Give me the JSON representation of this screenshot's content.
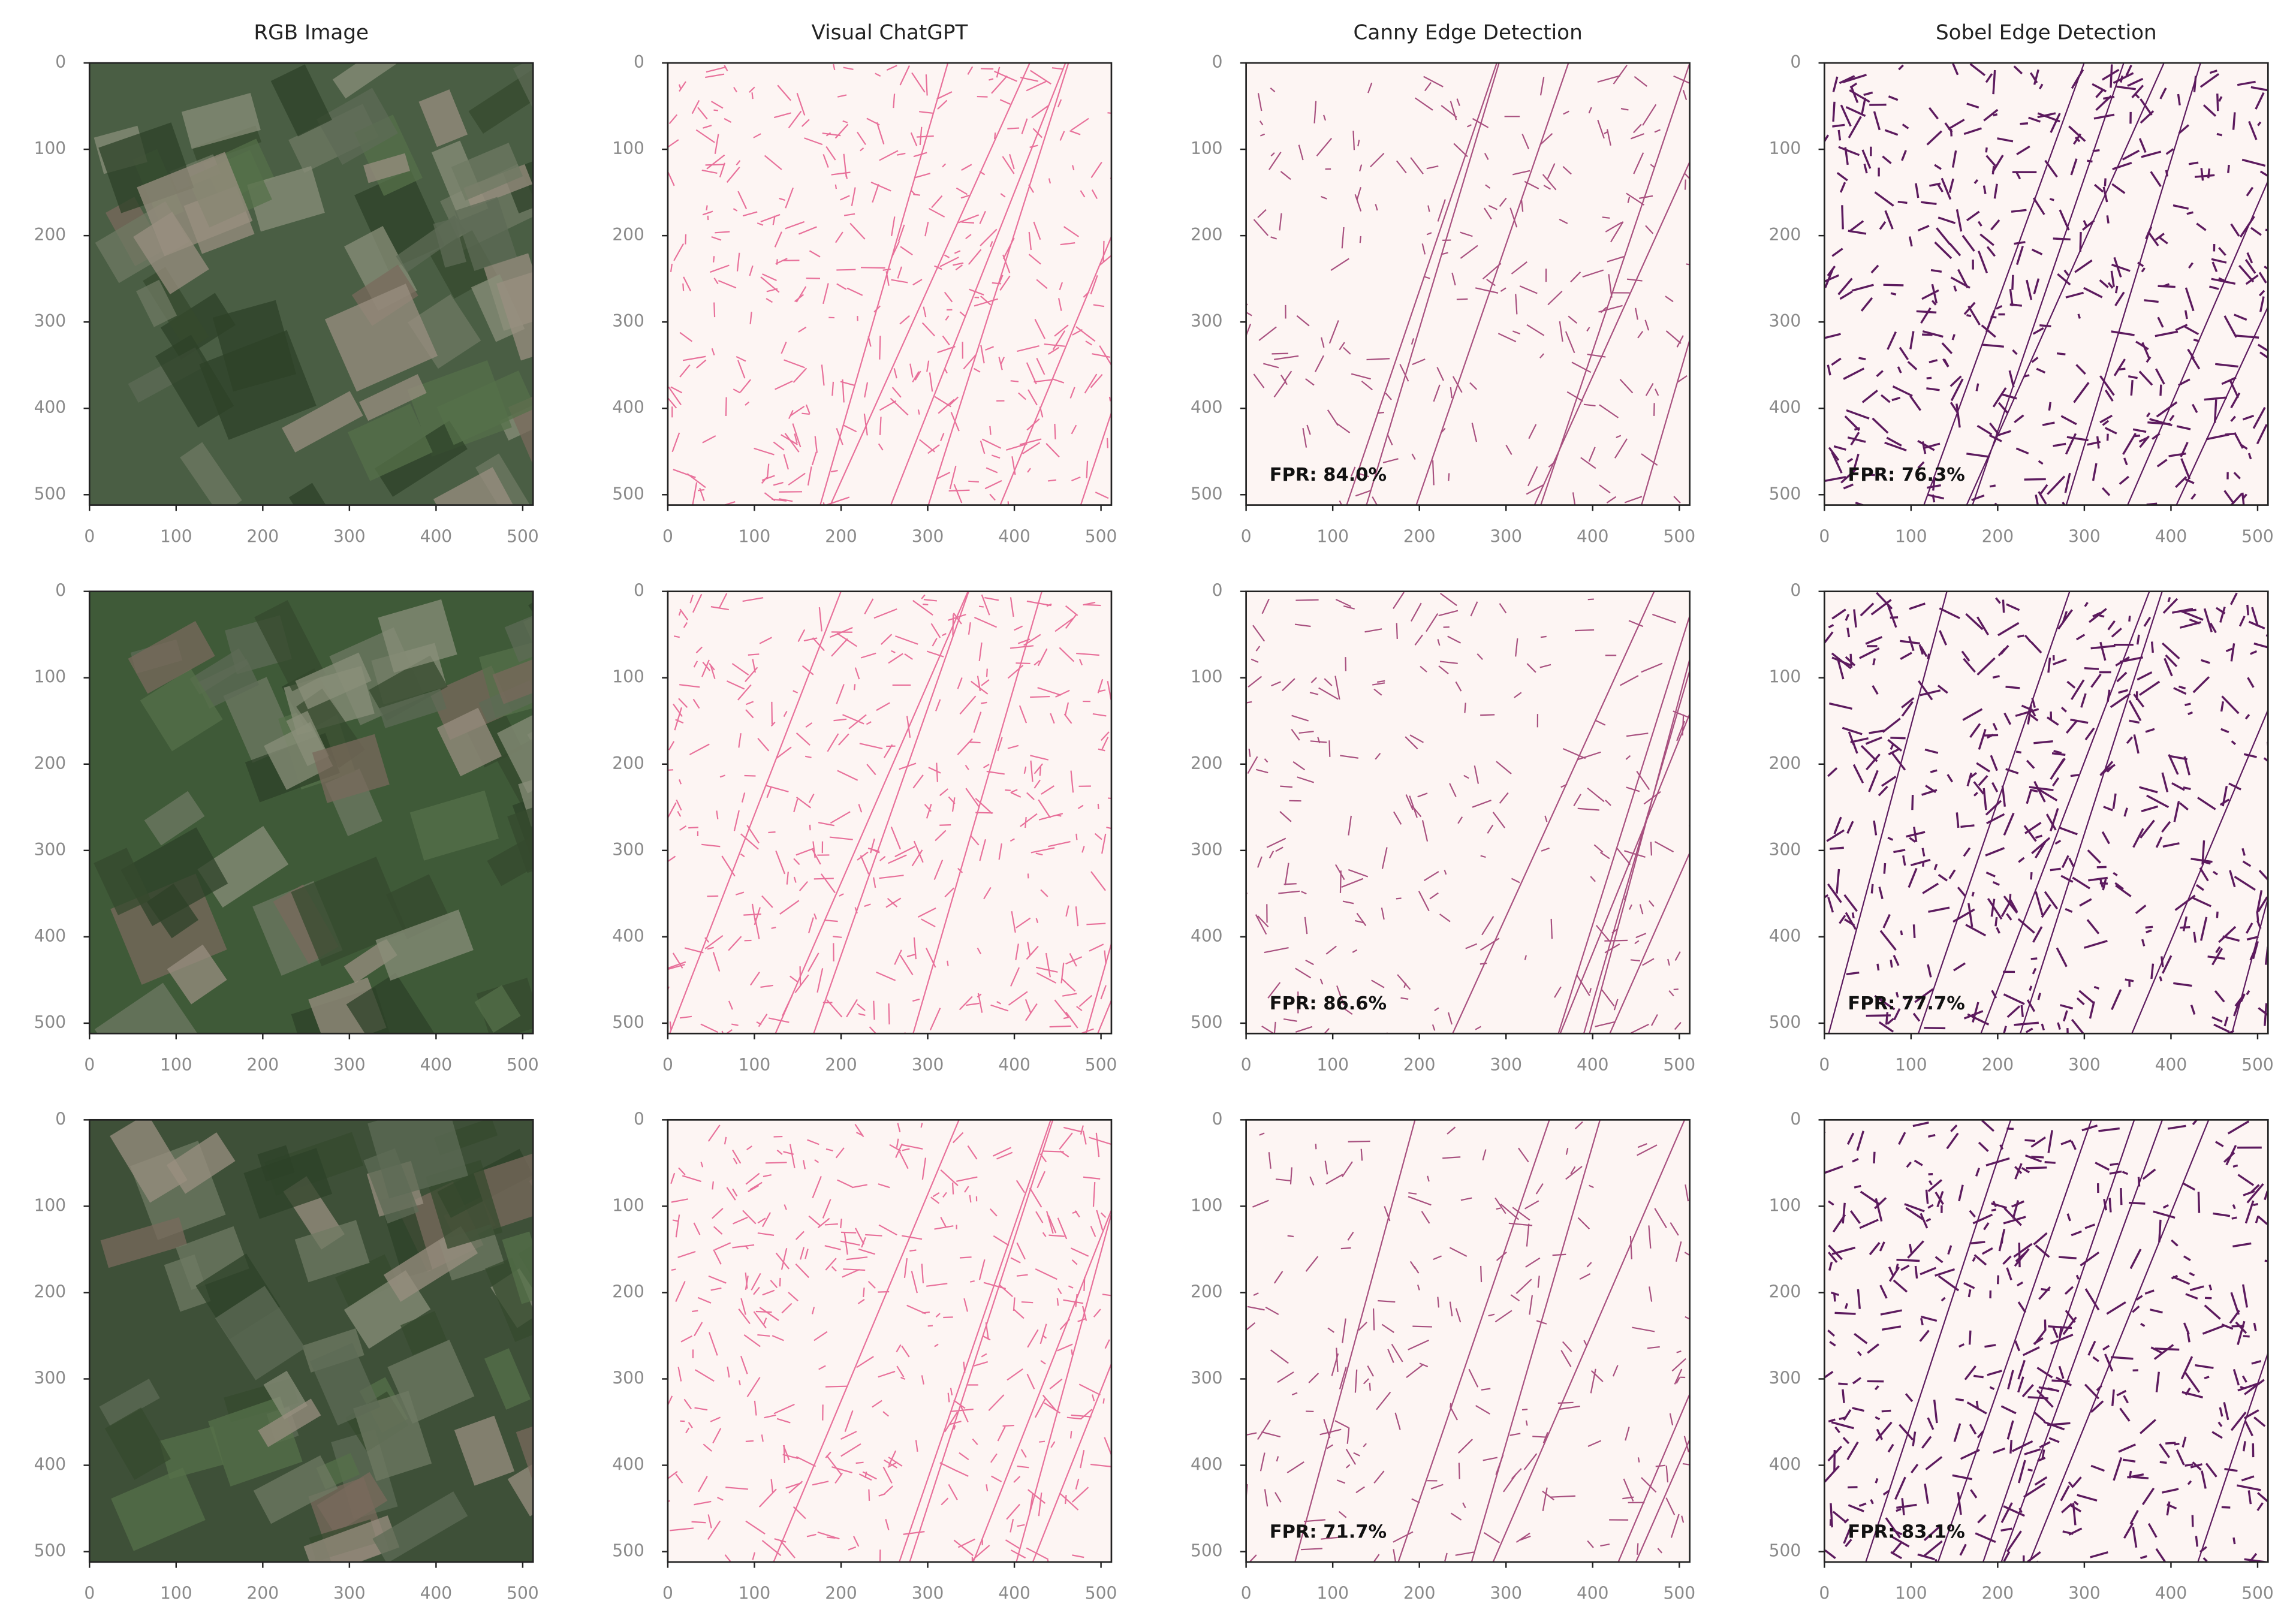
{
  "chart_data": [
    {
      "type": "image",
      "title": "RGB Image",
      "color": "#4a5e44",
      "xlim": [
        0,
        512
      ],
      "ylim": [
        512,
        0
      ],
      "xticks": [
        0,
        100,
        200,
        300,
        400,
        500
      ],
      "yticks": [
        0,
        100,
        200,
        300,
        400,
        500
      ]
    },
    {
      "type": "image",
      "title": "Visual ChatGPT",
      "color": "#e8709a",
      "xlim": [
        0,
        512
      ],
      "ylim": [
        512,
        0
      ],
      "xticks": [
        0,
        100,
        200,
        300,
        400,
        500
      ],
      "yticks": [
        0,
        100,
        200,
        300,
        400,
        500
      ]
    },
    {
      "type": "image",
      "title": "Canny Edge Detection",
      "color": "#a8507f",
      "annotation": "FPR: 84.0%",
      "xlim": [
        0,
        512
      ],
      "ylim": [
        512,
        0
      ],
      "xticks": [
        0,
        100,
        200,
        300,
        400,
        500
      ],
      "yticks": [
        0,
        100,
        200,
        300,
        400,
        500
      ]
    },
    {
      "type": "image",
      "title": "Sobel Edge Detection",
      "color": "#5c1a5e",
      "annotation": "FPR: 76.3%",
      "xlim": [
        0,
        512
      ],
      "ylim": [
        512,
        0
      ],
      "xticks": [
        0,
        100,
        200,
        300,
        400,
        500
      ],
      "yticks": [
        0,
        100,
        200,
        300,
        400,
        500
      ]
    },
    {
      "type": "image",
      "color": "#3f5a38",
      "xlim": [
        0,
        512
      ],
      "ylim": [
        512,
        0
      ],
      "xticks": [
        0,
        100,
        200,
        300,
        400,
        500
      ],
      "yticks": [
        0,
        100,
        200,
        300,
        400,
        500
      ]
    },
    {
      "type": "image",
      "color": "#e8709a",
      "xlim": [
        0,
        512
      ],
      "ylim": [
        512,
        0
      ],
      "xticks": [
        0,
        100,
        200,
        300,
        400,
        500
      ],
      "yticks": [
        0,
        100,
        200,
        300,
        400,
        500
      ]
    },
    {
      "type": "image",
      "color": "#a8507f",
      "annotation": "FPR: 86.6%",
      "xlim": [
        0,
        512
      ],
      "ylim": [
        512,
        0
      ],
      "xticks": [
        0,
        100,
        200,
        300,
        400,
        500
      ],
      "yticks": [
        0,
        100,
        200,
        300,
        400,
        500
      ]
    },
    {
      "type": "image",
      "color": "#5c1a5e",
      "annotation": "FPR: 77.7%",
      "xlim": [
        0,
        512
      ],
      "ylim": [
        512,
        0
      ],
      "xticks": [
        0,
        100,
        200,
        300,
        400,
        500
      ],
      "yticks": [
        0,
        100,
        200,
        300,
        400,
        500
      ]
    },
    {
      "type": "image",
      "color": "#3e5038",
      "xlim": [
        0,
        512
      ],
      "ylim": [
        512,
        0
      ],
      "xticks": [
        0,
        100,
        200,
        300,
        400,
        500
      ],
      "yticks": [
        0,
        100,
        200,
        300,
        400,
        500
      ]
    },
    {
      "type": "image",
      "color": "#e8709a",
      "xlim": [
        0,
        512
      ],
      "ylim": [
        512,
        0
      ],
      "xticks": [
        0,
        100,
        200,
        300,
        400,
        500
      ],
      "yticks": [
        0,
        100,
        200,
        300,
        400,
        500
      ]
    },
    {
      "type": "image",
      "color": "#a8507f",
      "annotation": "FPR: 71.7%",
      "xlim": [
        0,
        512
      ],
      "ylim": [
        512,
        0
      ],
      "xticks": [
        0,
        100,
        200,
        300,
        400,
        500
      ],
      "yticks": [
        0,
        100,
        200,
        300,
        400,
        500
      ]
    },
    {
      "type": "image",
      "color": "#5c1a5e",
      "annotation": "FPR: 83.1%",
      "xlim": [
        0,
        512
      ],
      "ylim": [
        512,
        0
      ],
      "xticks": [
        0,
        100,
        200,
        300,
        400,
        500
      ],
      "yticks": [
        0,
        100,
        200,
        300,
        400,
        500
      ]
    }
  ]
}
